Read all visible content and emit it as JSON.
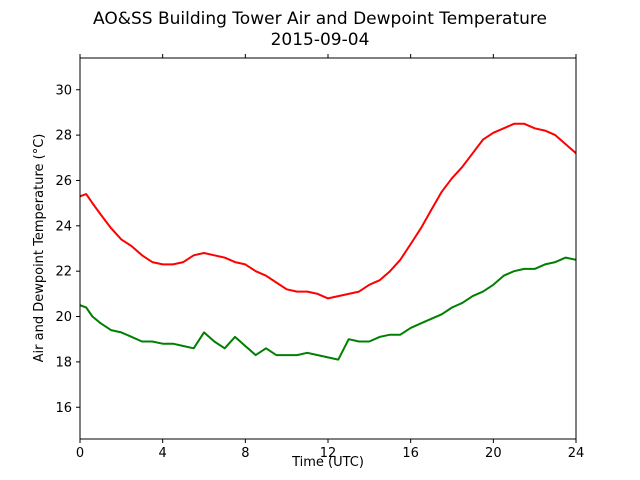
{
  "chart_data": {
    "type": "line",
    "title": "AO&SS Building Tower Air and Dewpoint Temperature",
    "subtitle": "2015-09-04",
    "xlabel": "Time (UTC)",
    "ylabel": "Air and Dewpoint Temperature (°C)",
    "xlim": [
      0,
      24
    ],
    "ylim": [
      14.6,
      31.4
    ],
    "xticks": [
      0,
      4,
      8,
      12,
      16,
      20,
      24
    ],
    "yticks": [
      16,
      18,
      20,
      22,
      24,
      26,
      28,
      30
    ],
    "grid": false,
    "legend": "none",
    "series": [
      {
        "color": "#ff0000",
        "x": [
          0,
          0.3,
          0.6,
          1,
          1.5,
          2,
          2.5,
          3,
          3.5,
          4,
          4.5,
          5,
          5.5,
          6,
          6.5,
          7,
          7.5,
          8,
          8.5,
          9,
          9.5,
          10,
          10.5,
          11,
          11.5,
          12,
          12.5,
          13,
          13.5,
          14,
          14.5,
          15,
          15.5,
          16,
          16.5,
          17,
          17.5,
          18,
          18.5,
          19,
          19.5,
          20,
          20.5,
          21,
          21.5,
          22,
          22.5,
          23,
          23.5,
          24
        ],
        "y": [
          25.3,
          25.4,
          25.0,
          24.5,
          23.9,
          23.4,
          23.1,
          22.7,
          22.4,
          22.3,
          22.3,
          22.4,
          22.7,
          22.8,
          22.7,
          22.6,
          22.4,
          22.3,
          22.0,
          21.8,
          21.5,
          21.2,
          21.1,
          21.1,
          21.0,
          20.8,
          20.9,
          21.0,
          21.1,
          21.4,
          21.6,
          22.0,
          22.5,
          23.2,
          23.9,
          24.7,
          25.5,
          26.1,
          26.6,
          27.2,
          27.8,
          28.1,
          28.3,
          28.5,
          28.5,
          28.3,
          28.2,
          28.0,
          27.6,
          27.2
        ]
      },
      {
        "color": "#008000",
        "x": [
          0,
          0.3,
          0.6,
          1,
          1.5,
          2,
          2.5,
          3,
          3.5,
          4,
          4.5,
          5,
          5.5,
          6,
          6.5,
          7,
          7.5,
          8,
          8.5,
          9,
          9.5,
          10,
          10.5,
          11,
          11.5,
          12,
          12.5,
          13,
          13.5,
          14,
          14.5,
          15,
          15.5,
          16,
          16.5,
          17,
          17.5,
          18,
          18.5,
          19,
          19.5,
          20,
          20.5,
          21,
          21.5,
          22,
          22.5,
          23,
          23.5,
          24
        ],
        "y": [
          20.5,
          20.4,
          20.0,
          19.7,
          19.4,
          19.3,
          19.1,
          18.9,
          18.9,
          18.8,
          18.8,
          18.7,
          18.6,
          19.3,
          18.9,
          18.6,
          19.1,
          18.7,
          18.3,
          18.6,
          18.3,
          18.3,
          18.3,
          18.4,
          18.3,
          18.2,
          18.1,
          19.0,
          18.9,
          18.9,
          19.1,
          19.2,
          19.2,
          19.5,
          19.7,
          19.9,
          20.1,
          20.4,
          20.6,
          20.9,
          21.1,
          21.4,
          21.8,
          22.0,
          22.1,
          22.1,
          22.3,
          22.4,
          22.6,
          22.5
        ]
      }
    ]
  }
}
